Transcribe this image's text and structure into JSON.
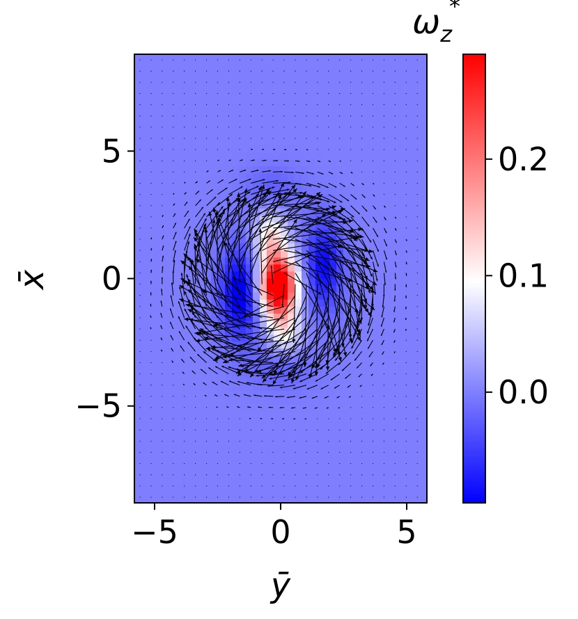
{
  "chart_data": {
    "type": "heatmap",
    "title": "",
    "xlabel": "ȳ",
    "ylabel": "x̄",
    "xlim": [
      -5.8,
      5.8
    ],
    "ylim": [
      -8.8,
      8.8
    ],
    "x_ticks": [
      -5,
      0,
      5
    ],
    "x_tick_labels": [
      "−5",
      "0",
      "5"
    ],
    "y_ticks": [
      -5,
      0,
      5
    ],
    "y_tick_labels": [
      "−5",
      "0",
      "5"
    ],
    "grid": false,
    "colormap": "bwr",
    "colors": {
      "low": "#0000ff",
      "mid": "#ffffff",
      "high": "#ff0000",
      "background": "#7f7fff"
    },
    "colorbar": {
      "label_main": "ω",
      "label_sub": "z",
      "label_sup": "*",
      "range": [
        -0.095,
        0.29
      ],
      "ticks": [
        0.0,
        0.1,
        0.2
      ],
      "tick_labels": [
        "0.0",
        "0.1",
        "0.2"
      ]
    },
    "vorticity_features": [
      {
        "kind": "positive core",
        "center": [
          -0.1,
          -0.3
        ],
        "sigma": [
          0.5,
          0.85
        ],
        "amplitude": 0.37
      },
      {
        "kind": "positive tail",
        "center": [
          -0.4,
          1.6
        ],
        "sigma": [
          0.45,
          0.7
        ],
        "amplitude": 0.12
      },
      {
        "kind": "positive tail",
        "center": [
          0.2,
          -2.1
        ],
        "sigma": [
          0.45,
          0.6
        ],
        "amplitude": 0.09
      },
      {
        "kind": "negative lobe",
        "center": [
          -1.6,
          -0.6
        ],
        "sigma": [
          0.55,
          1.2
        ],
        "amplitude": -0.11
      },
      {
        "kind": "negative lobe",
        "center": [
          1.7,
          0.5
        ],
        "sigma": [
          0.5,
          1.2
        ],
        "amplitude": -0.09
      },
      {
        "kind": "negative arc",
        "center": [
          -0.3,
          3.5
        ],
        "sigma": [
          0.8,
          0.6
        ],
        "amplitude": -0.025
      },
      {
        "kind": "negative arc",
        "center": [
          0.0,
          -3.5
        ],
        "sigma": [
          0.9,
          0.6
        ],
        "amplitude": -0.025
      }
    ],
    "base_value": 0.0,
    "velocity_field": {
      "grid_step": [
        0.44,
        0.44
      ],
      "vortex_center": [
        -0.1,
        -0.2
      ],
      "core_radius": 1.6,
      "peak_arrow_length": 3.6,
      "rotation": "clockwise",
      "color": "#000000"
    }
  }
}
